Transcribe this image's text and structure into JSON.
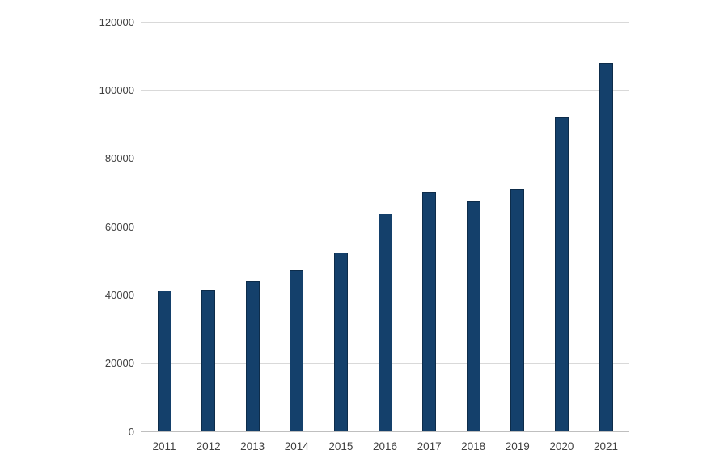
{
  "chart_data": {
    "type": "bar",
    "title": "",
    "xlabel": "",
    "ylabel": "",
    "categories": [
      "2011",
      "2012",
      "2013",
      "2014",
      "2015",
      "2016",
      "2017",
      "2018",
      "2019",
      "2020",
      "2021"
    ],
    "values": [
      41300,
      41600,
      44100,
      47100,
      52500,
      63800,
      70200,
      67500,
      70800,
      92000,
      107800
    ],
    "ylim": [
      0,
      120000
    ],
    "ytick_interval": 20000,
    "ytick_labels": [
      "0",
      "20000",
      "40000",
      "60000",
      "80000",
      "100000",
      "120000"
    ],
    "grid": true,
    "legend": false,
    "colors": {
      "bar_fill": "#14406b",
      "bar_border": "#0d2c4a",
      "gridline": "#d9d9d9",
      "axis_line": "#bfbfbf",
      "tick_label": "#404040",
      "background": "#ffffff"
    }
  }
}
